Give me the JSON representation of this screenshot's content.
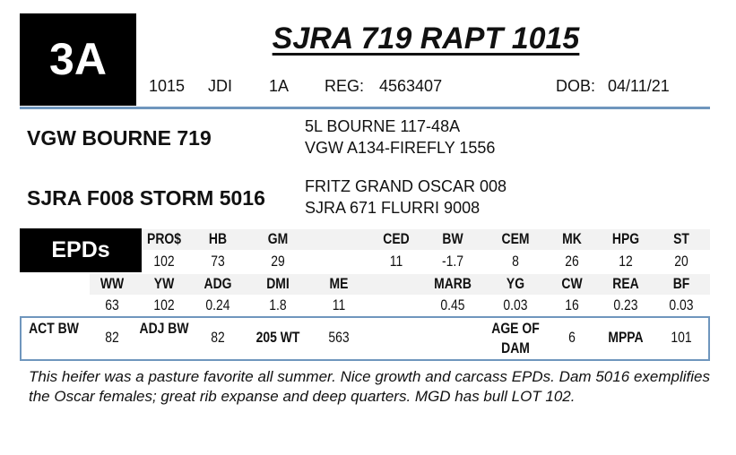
{
  "lot": {
    "number": "3A",
    "name": "SJRA 719 RAPT 1015",
    "tag": "1015",
    "tattoo": "JDI",
    "lot_code": "1A",
    "reg_label": "REG:",
    "reg": "4563407",
    "dob_label": "DOB:",
    "dob": "04/11/21"
  },
  "pedigree": {
    "sire": "VGW BOURNE 719",
    "sire_sire": "5L BOURNE 117-48A",
    "sire_dam": "VGW A134-FIREFLY 1556",
    "dam": "SJRA F008 STORM 5016",
    "dam_sire": "FRITZ GRAND OSCAR 008",
    "dam_dam": "SJRA 671 FLURRI 9008"
  },
  "epds": {
    "label": "EPDs",
    "row1": [
      {
        "h": "PRO$",
        "v": "102"
      },
      {
        "h": "HB",
        "v": "73"
      },
      {
        "h": "GM",
        "v": "29"
      },
      {
        "h": "CED",
        "v": "11"
      },
      {
        "h": "BW",
        "v": "-1.7"
      },
      {
        "h": "CEM",
        "v": "8"
      },
      {
        "h": "MK",
        "v": "26"
      },
      {
        "h": "HPG",
        "v": "12"
      },
      {
        "h": "ST",
        "v": "20"
      }
    ],
    "row2": [
      {
        "h": "WW",
        "v": "63"
      },
      {
        "h": "YW",
        "v": "102"
      },
      {
        "h": "ADG",
        "v": "0.24"
      },
      {
        "h": "DMI",
        "v": "1.8"
      },
      {
        "h": "ME",
        "v": "11"
      },
      {
        "h": "MARB",
        "v": "0.45"
      },
      {
        "h": "YG",
        "v": "0.03"
      },
      {
        "h": "CW",
        "v": "16"
      },
      {
        "h": "REA",
        "v": "0.23"
      },
      {
        "h": "BF",
        "v": "0.03"
      }
    ]
  },
  "performance": {
    "act_bw_label": "ACT BW",
    "act_bw": "82",
    "adj_bw_label": "ADJ BW",
    "adj_bw": "82",
    "wt205_label": "205 WT",
    "wt205": "563",
    "age_of_dam_label": "AGE OF DAM",
    "age_of_dam": "6",
    "mppa_label": "MPPA",
    "mppa": "101"
  },
  "comments": "This heifer was a pasture favorite all summer.  Nice growth and carcass EPDs.  Dam 5016 exemplifies the Oscar females;  great rib expanse and deep quarters.  MGD has bull LOT 102.",
  "colors": {
    "accent_rule": "#6f96bd",
    "band": "#f2f2f2"
  }
}
